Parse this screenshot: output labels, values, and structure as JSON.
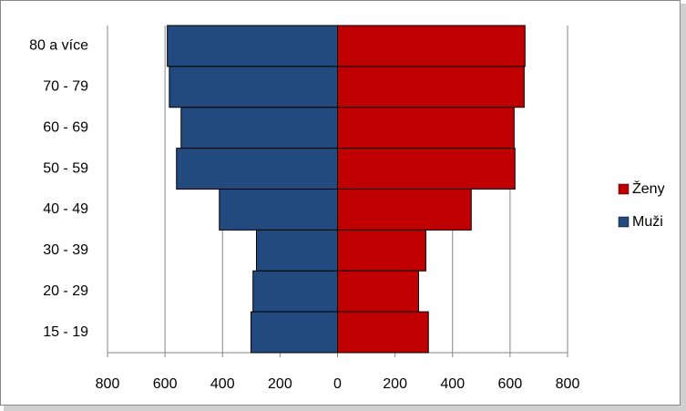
{
  "chart_data": {
    "type": "bar",
    "orientation": "horizontal",
    "stacked": true,
    "categories": [
      "80 a více",
      "70 - 79",
      "60 - 69",
      "50 - 59",
      "40 - 49",
      "30 - 39",
      "20 - 29",
      "15 - 19"
    ],
    "series": [
      {
        "name": "Ženy",
        "color": "#c00000",
        "values": [
          652,
          649,
          614,
          617,
          465,
          307,
          282,
          316
        ]
      },
      {
        "name": "Muži",
        "color": "#234a7e",
        "values": [
          -592,
          -585,
          -544,
          -560,
          -411,
          -282,
          -294,
          -301
        ]
      }
    ],
    "xlim": [
      -800,
      800
    ],
    "xticks": [
      {
        "value": -800,
        "label": "800"
      },
      {
        "value": -600,
        "label": "600"
      },
      {
        "value": -400,
        "label": "400"
      },
      {
        "value": -200,
        "label": "200"
      },
      0,
      200,
      400,
      600,
      800
    ],
    "grid": true,
    "legend": "right"
  }
}
